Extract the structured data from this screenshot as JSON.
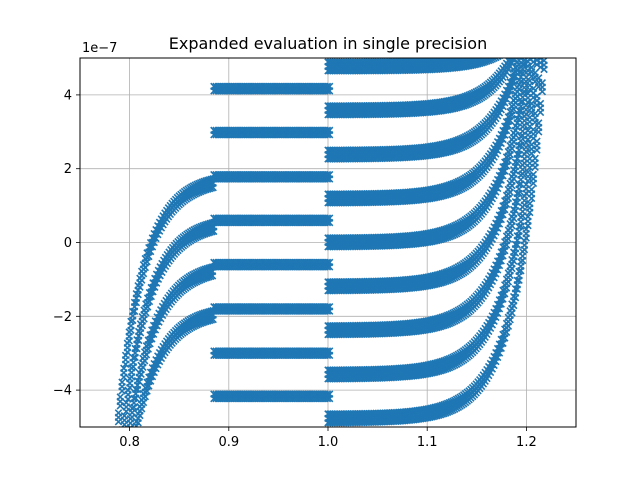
{
  "chart_data": {
    "type": "scatter",
    "title": "Expanded evaluation in single precision",
    "xlabel": "",
    "ylabel": "",
    "y_offset_label": "1e−7",
    "xlim": [
      0.75,
      1.25
    ],
    "ylim": [
      -5.0,
      5.0
    ],
    "y_scale_factor": 1e-07,
    "grid": true,
    "marker": "x",
    "color": "#1f77b4",
    "x_ticks": [
      0.8,
      0.9,
      1.0,
      1.1,
      1.2
    ],
    "x_tick_labels": [
      "0.8",
      "0.9",
      "1.0",
      "1.1",
      "1.2"
    ],
    "y_ticks": [
      -4,
      -2,
      0,
      2,
      4
    ],
    "y_tick_labels": [
      "−4",
      "−2",
      "0",
      "2",
      "4"
    ],
    "series": [
      {
        "name": "",
        "description": "left bands (x < 0.885)",
        "x_range": [
          0.785,
          0.885
        ],
        "plateaus": [
          1.78,
          0.6,
          -0.6,
          -1.8
        ]
      },
      {
        "name": "",
        "description": "middle bands",
        "x_range": [
          0.885,
          1.003
        ],
        "plateaus": [
          4.17,
          2.98,
          1.78,
          0.6,
          -0.6,
          -1.8,
          -3.0,
          -4.17
        ]
      },
      {
        "name": "",
        "description": "right bands (x > 1.0)",
        "x_range": [
          1.0,
          1.22
        ],
        "plateaus": [
          4.77,
          3.58,
          2.38,
          1.19,
          0.0,
          -1.19,
          -2.38,
          -3.58,
          -4.77
        ]
      }
    ]
  }
}
